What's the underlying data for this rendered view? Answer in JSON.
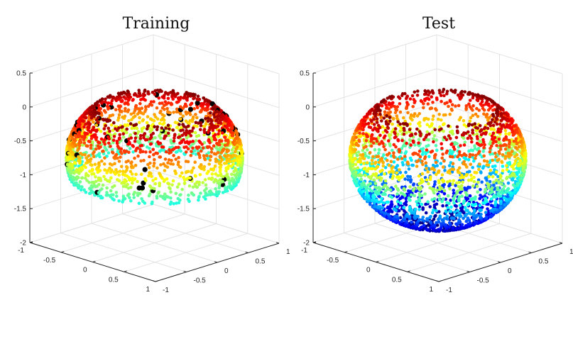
{
  "chart_data": {
    "type": "scatter3d",
    "colormap": "jet",
    "color_by": "z",
    "color_range": [
      -1.75,
      0
    ],
    "axes": {
      "xlim": [
        -1,
        1
      ],
      "ylim": [
        -1,
        1
      ],
      "zlim": [
        -2,
        0.5
      ],
      "xticks": [
        "-1",
        "-0.5",
        "0",
        "0.5",
        "1"
      ],
      "yticks": [
        "-1",
        "-0.5",
        "0",
        "0.5",
        "1"
      ],
      "zticks": [
        "-2",
        "-1.5",
        "-1",
        "-0.5",
        "0",
        "0.5"
      ],
      "grid": true
    },
    "plots": [
      {
        "title": "Training",
        "sphere_center": [
          0,
          0,
          -0.75
        ],
        "sphere_radius": 1,
        "z_range": [
          -1.05,
          0
        ],
        "n_points": 2300,
        "highlighted_black_points": 45,
        "seed": 7
      },
      {
        "title": "Test",
        "sphere_center": [
          0,
          0,
          -0.75
        ],
        "sphere_radius": 1,
        "z_range": [
          -1.75,
          0
        ],
        "n_points": 2800,
        "highlighted_black_points": 0,
        "seed": 11
      }
    ]
  }
}
